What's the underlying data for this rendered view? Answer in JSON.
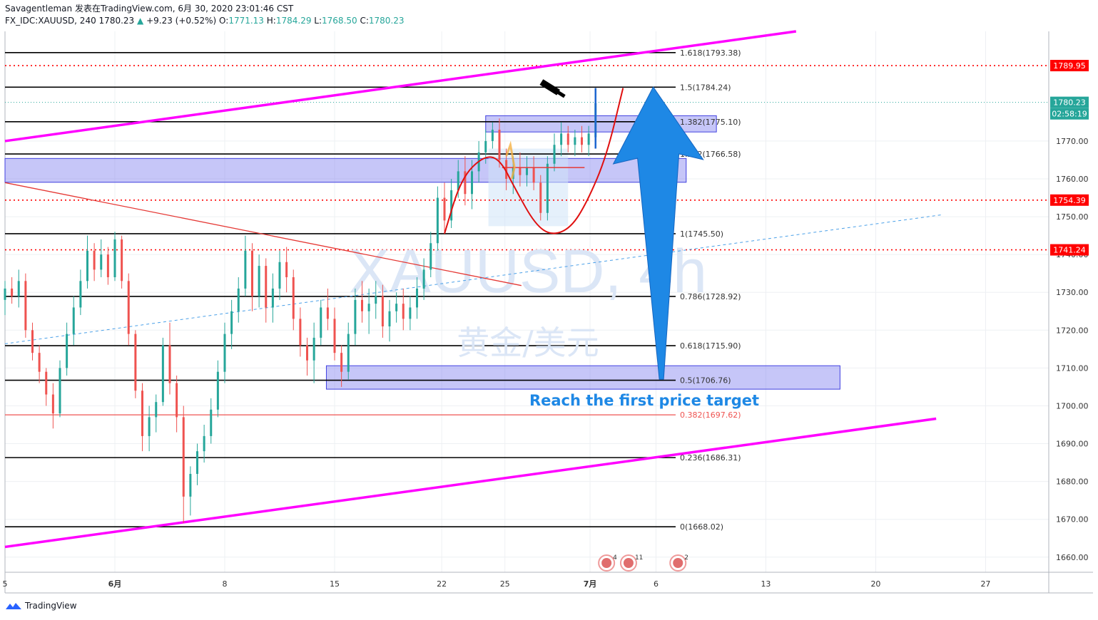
{
  "header": {
    "author": "Savagentleman",
    "published_text": "发表在TradingView.com, 6月 30, 2020 23:01:46 CST",
    "symbol": "FX_IDC:XAUUSD, 240",
    "last": "1780.23",
    "change": "+9.23 (+0.52%)",
    "o_label": "O:",
    "o_value": "1771.13",
    "h_label": "H:",
    "h_value": "1784.29",
    "l_label": "L:",
    "l_value": "1768.50",
    "c_label": "C:",
    "c_value": "1780.23"
  },
  "watermark": {
    "symbol": "XAUUSD, 4h",
    "name": "黄金/美元"
  },
  "annotation": {
    "text": "Reach the first price target"
  },
  "footer": {
    "brand": "TradingView"
  },
  "colors": {
    "up": "#26a69a",
    "down": "#ef5350",
    "channel": "#ff00ff",
    "zone": "#8080f0",
    "arrow": "#1e88e5",
    "redline": "#ff0000"
  },
  "chart_data": {
    "type": "candlestick",
    "y_axis": {
      "range": [
        1656,
        1799
      ],
      "ticks": [
        1660,
        1670,
        1680,
        1690,
        1700,
        1710,
        1720,
        1730,
        1740,
        1750,
        1760,
        1770
      ],
      "tick_labels": [
        "1660.00",
        "1670.00",
        "1680.00",
        "1690.00",
        "1700.00",
        "1710.00",
        "1720.00",
        "1730.00",
        "1740.00",
        "1750.00",
        "1760.00",
        "1770.00"
      ]
    },
    "x_axis": {
      "range_days": [
        1,
        39
      ],
      "ticks": [
        {
          "day": 1,
          "label": "5"
        },
        {
          "day": 5,
          "label": "6月"
        },
        {
          "day": 9,
          "label": "8"
        },
        {
          "day": 13,
          "label": "15"
        },
        {
          "day": 16.9,
          "label": "22"
        },
        {
          "day": 19.2,
          "label": "25"
        },
        {
          "day": 22.3,
          "label": "7月"
        },
        {
          "day": 24.7,
          "label": "6"
        },
        {
          "day": 28.7,
          "label": "13"
        },
        {
          "day": 32.7,
          "label": "20"
        },
        {
          "day": 36.7,
          "label": "27"
        }
      ]
    },
    "price_badges": [
      {
        "value": 1789.95,
        "label": "1789.95",
        "kind": "red"
      },
      {
        "value": 1780.23,
        "label": "1780.23",
        "kind": "current"
      },
      {
        "value": 1777.2,
        "label": "02:58:19",
        "kind": "timer"
      },
      {
        "value": 1754.39,
        "label": "1754.39",
        "kind": "red"
      },
      {
        "value": 1741.24,
        "label": "1741.24",
        "kind": "red"
      }
    ],
    "fib_levels": [
      {
        "ratio": "1.618",
        "value": 1793.38,
        "label": "1.618(1793.38)"
      },
      {
        "ratio": "1.5",
        "value": 1784.24,
        "label": "1.5(1784.24)"
      },
      {
        "ratio": "1.382",
        "value": 1775.1,
        "label": "1.382(1775.10)"
      },
      {
        "ratio": "1.272",
        "value": 1766.58,
        "label": "1.272(1766.58)"
      },
      {
        "ratio": "1",
        "value": 1745.5,
        "label": "1(1745.50)"
      },
      {
        "ratio": "0.786",
        "value": 1728.92,
        "label": "0.786(1728.92)"
      },
      {
        "ratio": "0.618",
        "value": 1715.9,
        "label": "0.618(1715.90)"
      },
      {
        "ratio": "0.5",
        "value": 1706.76,
        "label": "0.5(1706.76)"
      },
      {
        "ratio": "0.382",
        "value": 1697.62,
        "label": "0.382(1697.62)"
      },
      {
        "ratio": "0.236",
        "value": 1686.31,
        "label": "0.236(1686.31)"
      },
      {
        "ratio": "0",
        "value": 1668.02,
        "label": "0(1668.02)"
      }
    ],
    "horizontal_dotted": [
      1789.95,
      1754.39,
      1741.24
    ],
    "zones": [
      {
        "day_start": 1,
        "day_end": 25.8,
        "high": 1765.4,
        "low": 1759.1
      },
      {
        "day_start": 18.5,
        "day_end": 26.9,
        "high": 1776.7,
        "low": 1772.4
      },
      {
        "day_start": 12.7,
        "day_end": 31.4,
        "high": 1710.6,
        "low": 1704.4
      }
    ],
    "channel_lines": [
      {
        "from": [
          1,
          1770.0
        ],
        "to": [
          29.8,
          1799.0
        ]
      },
      {
        "from": [
          1,
          1662.7
        ],
        "to": [
          34.9,
          1696.6
        ]
      }
    ],
    "trend_lines": [
      {
        "from": [
          1,
          1759.0
        ],
        "to": [
          19.8,
          1731.8
        ],
        "style": "solid-red"
      },
      {
        "from": [
          1,
          1716.4
        ],
        "to": [
          35.1,
          1750.5
        ],
        "style": "dashed-blue"
      }
    ],
    "candles": [
      [
        1.0,
        1728,
        1733,
        1724,
        1731
      ],
      [
        1.25,
        1731,
        1734,
        1727,
        1729
      ],
      [
        1.5,
        1729,
        1736,
        1726,
        1733
      ],
      [
        1.75,
        1733,
        1735,
        1718,
        1720
      ],
      [
        2.0,
        1720,
        1722,
        1712,
        1714
      ],
      [
        2.25,
        1714,
        1716,
        1706,
        1709
      ],
      [
        2.5,
        1709,
        1710,
        1700,
        1703
      ],
      [
        2.75,
        1703,
        1706,
        1694,
        1698
      ],
      [
        3.0,
        1698,
        1712,
        1697,
        1710
      ],
      [
        3.25,
        1710,
        1722,
        1708,
        1719
      ],
      [
        3.5,
        1719,
        1729,
        1716,
        1726
      ],
      [
        3.75,
        1726,
        1736,
        1724,
        1733
      ],
      [
        4.0,
        1733,
        1745,
        1731,
        1741
      ],
      [
        4.25,
        1741,
        1743,
        1733,
        1736
      ],
      [
        4.5,
        1736,
        1744,
        1734,
        1740
      ],
      [
        4.75,
        1740,
        1742,
        1732,
        1734
      ],
      [
        5.0,
        1734,
        1746,
        1733,
        1744
      ],
      [
        5.25,
        1744,
        1745,
        1731,
        1733
      ],
      [
        5.5,
        1733,
        1735,
        1716,
        1719
      ],
      [
        5.75,
        1719,
        1720,
        1702,
        1704
      ],
      [
        6.0,
        1704,
        1706,
        1688,
        1692
      ],
      [
        6.25,
        1692,
        1700,
        1688,
        1697
      ],
      [
        6.5,
        1697,
        1703,
        1693,
        1701
      ],
      [
        6.75,
        1701,
        1718,
        1700,
        1716
      ],
      [
        7.0,
        1716,
        1722,
        1703,
        1706
      ],
      [
        7.25,
        1706,
        1708,
        1693,
        1697
      ],
      [
        7.5,
        1697,
        1700,
        1669,
        1676
      ],
      [
        7.75,
        1676,
        1684,
        1671,
        1682
      ],
      [
        8.0,
        1682,
        1690,
        1679,
        1688
      ],
      [
        8.25,
        1688,
        1695,
        1685,
        1692
      ],
      [
        8.5,
        1692,
        1702,
        1690,
        1699
      ],
      [
        8.75,
        1699,
        1712,
        1697,
        1709
      ],
      [
        9.0,
        1709,
        1722,
        1706,
        1719
      ],
      [
        9.25,
        1719,
        1728,
        1715,
        1725
      ],
      [
        9.5,
        1725,
        1734,
        1722,
        1731
      ],
      [
        9.75,
        1731,
        1745,
        1729,
        1741
      ],
      [
        10.0,
        1741,
        1743,
        1725,
        1729
      ],
      [
        10.25,
        1729,
        1740,
        1726,
        1737
      ],
      [
        10.5,
        1737,
        1739,
        1722,
        1726
      ],
      [
        10.75,
        1726,
        1735,
        1722,
        1731
      ],
      [
        11.0,
        1731,
        1741,
        1728,
        1738
      ],
      [
        11.25,
        1738,
        1742,
        1730,
        1734
      ],
      [
        11.5,
        1734,
        1736,
        1720,
        1723
      ],
      [
        11.75,
        1723,
        1726,
        1713,
        1716
      ],
      [
        12.0,
        1716,
        1718,
        1708,
        1712
      ],
      [
        12.25,
        1712,
        1722,
        1706,
        1718
      ],
      [
        12.5,
        1718,
        1728,
        1716,
        1726
      ],
      [
        12.75,
        1726,
        1731,
        1720,
        1723
      ],
      [
        13.0,
        1723,
        1726,
        1712,
        1714
      ],
      [
        13.25,
        1714,
        1716,
        1705,
        1709
      ],
      [
        13.5,
        1709,
        1722,
        1707,
        1719
      ],
      [
        13.75,
        1719,
        1731,
        1716,
        1728
      ],
      [
        14.0,
        1728,
        1733,
        1722,
        1725
      ],
      [
        14.25,
        1725,
        1731,
        1719,
        1727
      ],
      [
        14.5,
        1727,
        1733,
        1723,
        1729
      ],
      [
        14.75,
        1729,
        1732,
        1718,
        1721
      ],
      [
        15.0,
        1721,
        1728,
        1717,
        1725
      ],
      [
        15.25,
        1725,
        1730,
        1722,
        1727
      ],
      [
        15.5,
        1727,
        1731,
        1720,
        1723
      ],
      [
        15.75,
        1723,
        1729,
        1720,
        1726
      ],
      [
        16.0,
        1726,
        1734,
        1723,
        1731
      ],
      [
        16.25,
        1731,
        1739,
        1728,
        1736
      ],
      [
        16.5,
        1736,
        1746,
        1734,
        1743
      ],
      [
        16.75,
        1743,
        1758,
        1741,
        1755
      ],
      [
        17.0,
        1755,
        1759,
        1746,
        1749
      ],
      [
        17.25,
        1749,
        1760,
        1747,
        1757
      ],
      [
        17.5,
        1757,
        1765,
        1755,
        1762
      ],
      [
        17.75,
        1762,
        1766,
        1753,
        1756
      ],
      [
        18.0,
        1756,
        1765,
        1752,
        1762
      ],
      [
        18.25,
        1762,
        1770,
        1759,
        1767
      ],
      [
        18.5,
        1767,
        1773,
        1764,
        1770
      ],
      [
        18.75,
        1770,
        1775,
        1768,
        1773
      ],
      [
        19.0,
        1773,
        1776,
        1763,
        1765
      ],
      [
        19.25,
        1765,
        1768,
        1757,
        1760
      ],
      [
        19.5,
        1760,
        1766,
        1756,
        1763
      ],
      [
        19.75,
        1763,
        1767,
        1758,
        1761
      ],
      [
        20.0,
        1761,
        1766,
        1758,
        1763
      ],
      [
        20.25,
        1763,
        1766,
        1757,
        1759
      ],
      [
        20.5,
        1759,
        1761,
        1749,
        1751
      ],
      [
        20.75,
        1751,
        1766,
        1749,
        1764
      ],
      [
        21.0,
        1764,
        1772,
        1762,
        1769
      ],
      [
        21.25,
        1769,
        1775,
        1766,
        1772
      ],
      [
        21.5,
        1772,
        1774,
        1767,
        1769
      ],
      [
        21.75,
        1769,
        1773,
        1766,
        1771
      ],
      [
        22.0,
        1771,
        1774,
        1767,
        1769
      ],
      [
        22.25,
        1769,
        1774,
        1766,
        1772
      ],
      [
        22.5,
        1771,
        1784,
        1768,
        1780
      ]
    ],
    "forecast_curve": [
      [
        17.0,
        1745.5
      ],
      [
        17.6,
        1760
      ],
      [
        18.4,
        1766
      ],
      [
        19.0,
        1765.5
      ],
      [
        19.6,
        1757
      ],
      [
        20.3,
        1748
      ],
      [
        20.9,
        1745
      ],
      [
        21.6,
        1747
      ],
      [
        22.2,
        1754
      ],
      [
        22.9,
        1766
      ],
      [
        23.5,
        1784
      ]
    ],
    "arrow": {
      "base_day": 24.9,
      "base_value": 1707,
      "tip_day": 24.6,
      "tip_value": 1784.3
    },
    "event_markers": [
      {
        "day": 22.9,
        "label": "4"
      },
      {
        "day": 23.7,
        "label": "11"
      },
      {
        "day": 25.5,
        "label": "2"
      }
    ]
  }
}
